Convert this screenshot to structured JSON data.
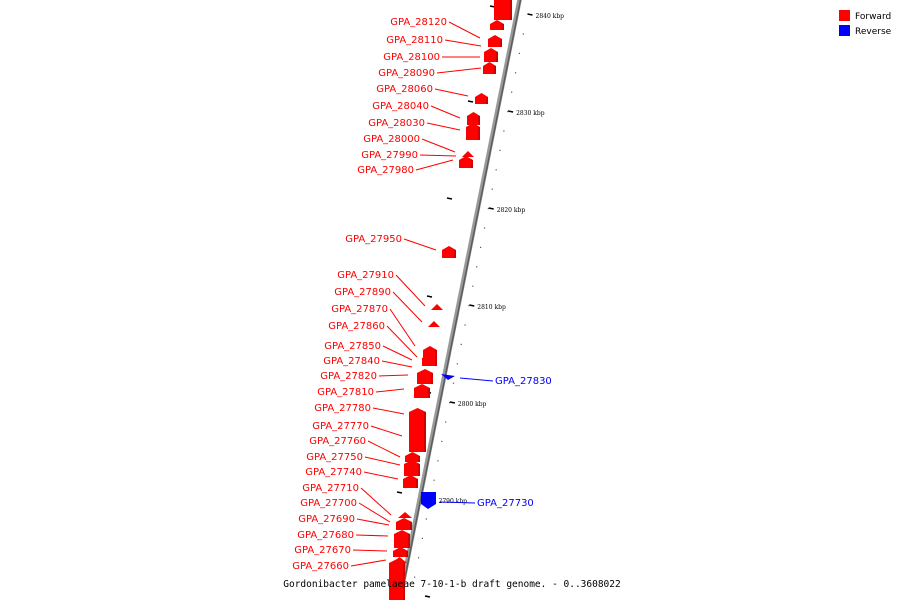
{
  "caption": "Gordonibacter pamelaeae 7-10-1-b draft genome. - 0..3608022",
  "colors": {
    "forward": "#ff0000",
    "reverse": "#0000ff",
    "backbone": "#7a7a7a",
    "tick": "#000000"
  },
  "legend": [
    {
      "label": "Forward",
      "color": "#ff0000"
    },
    {
      "label": "Reverse",
      "color": "#0000ff"
    }
  ],
  "ticks": [
    "2840 kbp",
    "2830 kbp",
    "2820 kbp",
    "2810 kbp",
    "2800 kbp",
    "2790 kbp"
  ],
  "genes": [
    {
      "name": "GPA_28120",
      "strand": "forward"
    },
    {
      "name": "GPA_28110",
      "strand": "forward"
    },
    {
      "name": "GPA_28100",
      "strand": "forward"
    },
    {
      "name": "GPA_28090",
      "strand": "forward"
    },
    {
      "name": "GPA_28060",
      "strand": "forward"
    },
    {
      "name": "GPA_28040",
      "strand": "forward"
    },
    {
      "name": "GPA_28030",
      "strand": "forward"
    },
    {
      "name": "GPA_28000",
      "strand": "forward"
    },
    {
      "name": "GPA_27990",
      "strand": "forward"
    },
    {
      "name": "GPA_27980",
      "strand": "forward"
    },
    {
      "name": "GPA_27950",
      "strand": "forward"
    },
    {
      "name": "GPA_27910",
      "strand": "forward"
    },
    {
      "name": "GPA_27890",
      "strand": "forward"
    },
    {
      "name": "GPA_27870",
      "strand": "forward"
    },
    {
      "name": "GPA_27860",
      "strand": "forward"
    },
    {
      "name": "GPA_27850",
      "strand": "forward"
    },
    {
      "name": "GPA_27840",
      "strand": "forward"
    },
    {
      "name": "GPA_27830",
      "strand": "reverse"
    },
    {
      "name": "GPA_27820",
      "strand": "forward"
    },
    {
      "name": "GPA_27810",
      "strand": "forward"
    },
    {
      "name": "GPA_27780",
      "strand": "forward"
    },
    {
      "name": "GPA_27770",
      "strand": "forward"
    },
    {
      "name": "GPA_27760",
      "strand": "forward"
    },
    {
      "name": "GPA_27750",
      "strand": "forward"
    },
    {
      "name": "GPA_27740",
      "strand": "forward"
    },
    {
      "name": "GPA_27730",
      "strand": "reverse"
    },
    {
      "name": "GPA_27710",
      "strand": "forward"
    },
    {
      "name": "GPA_27700",
      "strand": "forward"
    },
    {
      "name": "GPA_27690",
      "strand": "forward"
    },
    {
      "name": "GPA_27680",
      "strand": "forward"
    },
    {
      "name": "GPA_27670",
      "strand": "forward"
    },
    {
      "name": "GPA_27660",
      "strand": "forward"
    }
  ]
}
